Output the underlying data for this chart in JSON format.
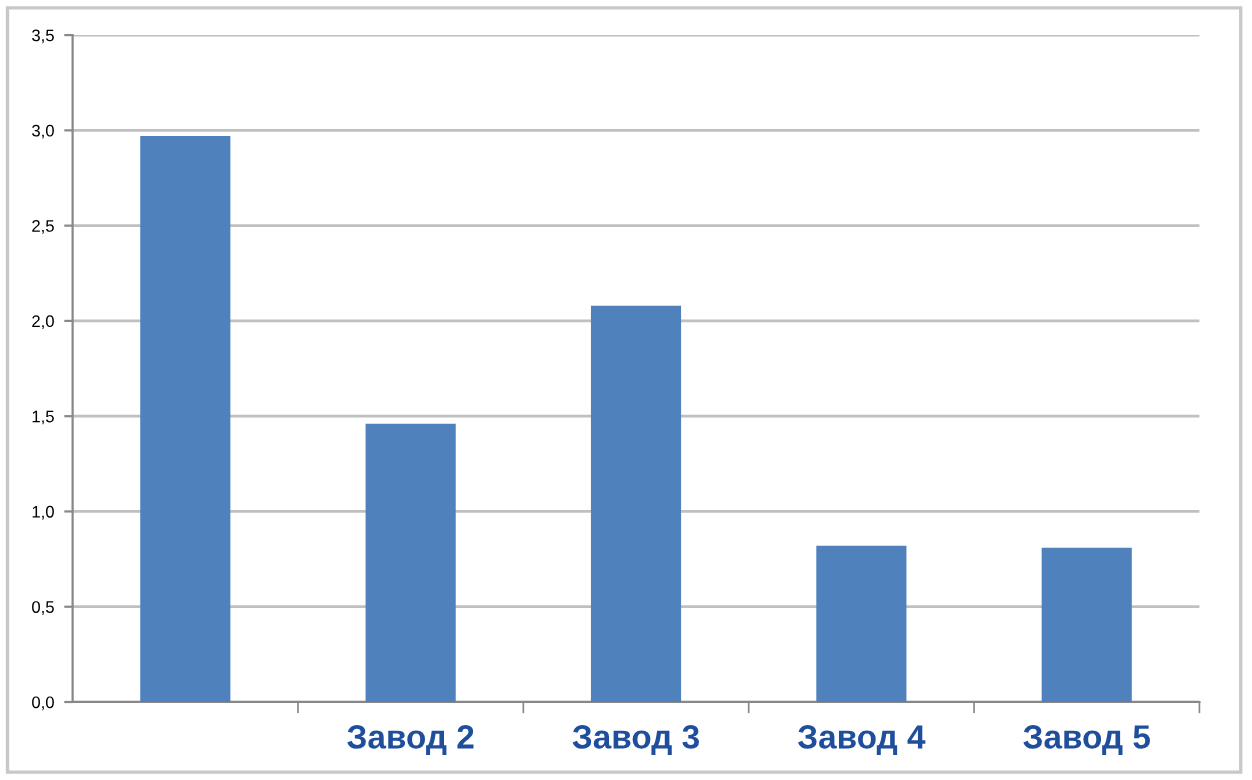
{
  "chart_data": {
    "type": "bar",
    "categories": [
      null,
      "Завод 2",
      "Завод 3",
      "Завод 4",
      "Завод 5"
    ],
    "values": [
      2.97,
      1.46,
      2.08,
      0.82,
      0.81
    ],
    "color": "#4f81bd",
    "ylim": [
      0,
      3.5
    ],
    "yticks": [
      {
        "value": 0,
        "label": "0,0"
      },
      {
        "value": 0.5,
        "label": "0,5"
      },
      {
        "value": 1,
        "label": "1,0"
      },
      {
        "value": 1.5,
        "label": "1,5"
      },
      {
        "value": 2,
        "label": "2,0"
      },
      {
        "value": 2.5,
        "label": "2,5"
      },
      {
        "value": 3,
        "label": "3,0"
      },
      {
        "value": 3.5,
        "label": "3,5"
      }
    ],
    "grid": "y",
    "legend": false
  }
}
